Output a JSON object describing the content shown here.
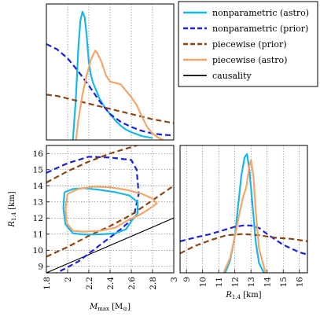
{
  "chart_data": [
    {
      "type": "line",
      "panel": "top-left",
      "xlabel": "",
      "ylabel": "",
      "xlim": [
        1.8,
        3.0
      ],
      "x_grid_ticks": [
        2.0,
        2.2,
        2.4,
        2.6,
        2.8
      ],
      "grid": true,
      "series": [
        {
          "name": "nonparametric (astro)",
          "color": "#1ab6e8",
          "style": "solid",
          "x": [
            2.05,
            2.08,
            2.1,
            2.12,
            2.14,
            2.16,
            2.18,
            2.2,
            2.22,
            2.24,
            2.26,
            2.3,
            2.35,
            2.4,
            2.45,
            2.5,
            2.55,
            2.6,
            2.7,
            2.8
          ],
          "y": [
            0.0,
            0.35,
            0.7,
            0.92,
            0.99,
            0.95,
            0.8,
            0.6,
            0.5,
            0.44,
            0.4,
            0.32,
            0.25,
            0.2,
            0.15,
            0.11,
            0.08,
            0.06,
            0.03,
            0.015
          ]
        },
        {
          "name": "nonparametric (prior)",
          "color": "#1a21e0",
          "style": "dashed",
          "x": [
            1.8,
            1.9,
            2.0,
            2.1,
            2.2,
            2.3,
            2.4,
            2.5,
            2.6,
            2.7,
            2.8,
            2.9,
            3.0
          ],
          "y": [
            0.74,
            0.7,
            0.63,
            0.53,
            0.42,
            0.3,
            0.2,
            0.14,
            0.1,
            0.07,
            0.05,
            0.04,
            0.035
          ]
        },
        {
          "name": "piecewise (prior)",
          "color": "#8b4513",
          "style": "dashed",
          "x": [
            1.8,
            1.9,
            2.0,
            2.2,
            2.4,
            2.6,
            2.8,
            3.0
          ],
          "y": [
            0.35,
            0.34,
            0.32,
            0.28,
            0.24,
            0.2,
            0.16,
            0.13
          ]
        },
        {
          "name": "piecewise (astro)",
          "color": "#f2a66b",
          "style": "solid",
          "x": [
            2.08,
            2.1,
            2.14,
            2.18,
            2.22,
            2.26,
            2.28,
            2.32,
            2.36,
            2.4,
            2.45,
            2.5,
            2.55,
            2.6,
            2.65,
            2.7,
            2.75,
            2.8,
            2.85,
            2.9
          ],
          "y": [
            0.0,
            0.15,
            0.35,
            0.5,
            0.62,
            0.69,
            0.67,
            0.6,
            0.5,
            0.45,
            0.44,
            0.43,
            0.38,
            0.33,
            0.27,
            0.18,
            0.1,
            0.05,
            0.02,
            0.0
          ]
        }
      ]
    },
    {
      "type": "line",
      "panel": "bottom-left",
      "xlabel": "M_max [M_⊙]",
      "ylabel": "R_1.4 [km]",
      "xlim": [
        1.8,
        3.0
      ],
      "ylim": [
        8.6,
        16.5
      ],
      "xticks": [
        1.8,
        2.0,
        2.2,
        2.4,
        2.6,
        2.8,
        3.0
      ],
      "yticks": [
        9,
        10,
        11,
        12,
        13,
        14,
        15,
        16
      ],
      "grid": true,
      "series": [
        {
          "name": "causality",
          "color": "#000000",
          "style": "solid",
          "x": [
            1.8,
            3.0
          ],
          "y": [
            8.6,
            12.0
          ]
        },
        {
          "name": "nonparametric (prior)",
          "color": "#1a21e0",
          "style": "dashed",
          "x": [
            1.8,
            2.0,
            2.2,
            2.4,
            2.6,
            2.65,
            2.67,
            2.62,
            2.5,
            2.3,
            2.1,
            1.9,
            1.8
          ],
          "y": [
            14.8,
            15.4,
            15.8,
            15.75,
            15.6,
            15.0,
            13.5,
            12.0,
            11.3,
            10.3,
            9.3,
            8.6,
            8.3
          ]
        },
        {
          "name": "piecewise (prior)",
          "color": "#8b4513",
          "style": "dashed",
          "x": [
            1.8,
            2.0,
            2.2,
            2.4,
            2.6,
            2.8,
            3.0
          ],
          "y": [
            14.2,
            14.9,
            15.5,
            16.0,
            16.4,
            16.8,
            17.1
          ]
        },
        {
          "name": "piecewise (prior)",
          "color": "#8b4513",
          "style": "dashed",
          "x": [
            1.8,
            2.0,
            2.2,
            2.4,
            2.6,
            2.8,
            3.0
          ],
          "y": [
            9.6,
            10.2,
            10.9,
            11.5,
            12.2,
            13.1,
            14.0
          ]
        },
        {
          "name": "nonparametric (astro)",
          "color": "#1ab6e8",
          "style": "solid",
          "x": [
            1.97,
            2.05,
            2.15,
            2.3,
            2.45,
            2.58,
            2.66,
            2.66,
            2.6,
            2.55,
            2.45,
            2.35,
            2.25,
            2.15,
            2.05,
            1.98,
            1.96,
            1.97
          ],
          "y": [
            13.6,
            13.8,
            13.85,
            13.75,
            13.6,
            13.4,
            13.0,
            12.3,
            11.8,
            11.3,
            11.05,
            11.0,
            10.98,
            10.98,
            11.05,
            11.6,
            12.6,
            13.6
          ]
        },
        {
          "name": "piecewise (astro)",
          "color": "#f2a66b",
          "style": "solid",
          "x": [
            2.0,
            2.1,
            2.25,
            2.4,
            2.55,
            2.7,
            2.8,
            2.84,
            2.8,
            2.68,
            2.55,
            2.45,
            2.3,
            2.15,
            2.05,
            1.99,
            1.98,
            2.0
          ],
          "y": [
            13.5,
            13.8,
            13.95,
            13.9,
            13.75,
            13.5,
            13.2,
            12.9,
            12.7,
            12.2,
            11.8,
            11.4,
            11.2,
            11.15,
            11.2,
            11.7,
            12.6,
            13.5
          ]
        }
      ]
    },
    {
      "type": "line",
      "panel": "bottom-right",
      "xlabel": "R_1.4 [km]",
      "ylabel": "",
      "xlim": [
        8.6,
        16.5
      ],
      "xticks": [
        9,
        10,
        11,
        12,
        13,
        14,
        15,
        16
      ],
      "grid": true,
      "series": [
        {
          "name": "nonparametric (astro)",
          "color": "#1ab6e8",
          "style": "solid",
          "x": [
            11.4,
            11.7,
            12.0,
            12.2,
            12.4,
            12.6,
            12.75,
            12.9,
            13.1,
            13.3,
            13.5,
            13.8
          ],
          "y": [
            0.0,
            0.1,
            0.3,
            0.55,
            0.8,
            0.95,
            0.98,
            0.85,
            0.55,
            0.25,
            0.08,
            0.0
          ]
        },
        {
          "name": "nonparametric (prior)",
          "color": "#1a21e0",
          "style": "dashed",
          "x": [
            8.6,
            9.5,
            10.5,
            11.5,
            12.0,
            12.5,
            13.0,
            13.5,
            14.0,
            15.0,
            16.0,
            16.5
          ],
          "y": [
            0.26,
            0.29,
            0.32,
            0.36,
            0.38,
            0.39,
            0.39,
            0.37,
            0.32,
            0.23,
            0.17,
            0.15
          ]
        },
        {
          "name": "piecewise (prior)",
          "color": "#8b4513",
          "style": "dashed",
          "x": [
            8.6,
            9.5,
            10.5,
            11.5,
            12.5,
            13.5,
            14.5,
            15.5,
            16.5
          ],
          "y": [
            0.16,
            0.22,
            0.27,
            0.31,
            0.32,
            0.31,
            0.29,
            0.28,
            0.26
          ]
        },
        {
          "name": "piecewise (astro)",
          "color": "#f2a66b",
          "style": "solid",
          "x": [
            11.3,
            11.7,
            12.0,
            12.3,
            12.5,
            12.7,
            12.9,
            13.0,
            13.15,
            13.3,
            13.5,
            13.9
          ],
          "y": [
            0.0,
            0.12,
            0.3,
            0.5,
            0.62,
            0.7,
            0.88,
            0.93,
            0.8,
            0.5,
            0.2,
            0.0
          ]
        }
      ]
    }
  ],
  "legend": {
    "placement": "top-right",
    "entries": [
      {
        "label": "nonparametric (astro)",
        "color": "#1ab6e8",
        "style": "solid"
      },
      {
        "label": "nonparametric (prior)",
        "color": "#1a21e0",
        "style": "dashed"
      },
      {
        "label": "piecewise (prior)",
        "color": "#8b4513",
        "style": "dashed"
      },
      {
        "label": "piecewise (astro)",
        "color": "#f2a66b",
        "style": "solid"
      },
      {
        "label": "causality",
        "color": "#000000",
        "style": "solid"
      }
    ]
  },
  "axis_labels": {
    "bottom_left_x_main": "M",
    "bottom_left_x_sub": "max",
    "bottom_left_x_unit": " [M",
    "bottom_left_x_unit_sub": "⊙",
    "bottom_left_x_close": "]",
    "bottom_left_y_main": "R",
    "bottom_left_y_sub": "1.4",
    "bottom_left_y_unit": " [km]",
    "bottom_right_x_main": "R",
    "bottom_right_x_sub": "1.4",
    "bottom_right_x_unit": " [km]"
  }
}
